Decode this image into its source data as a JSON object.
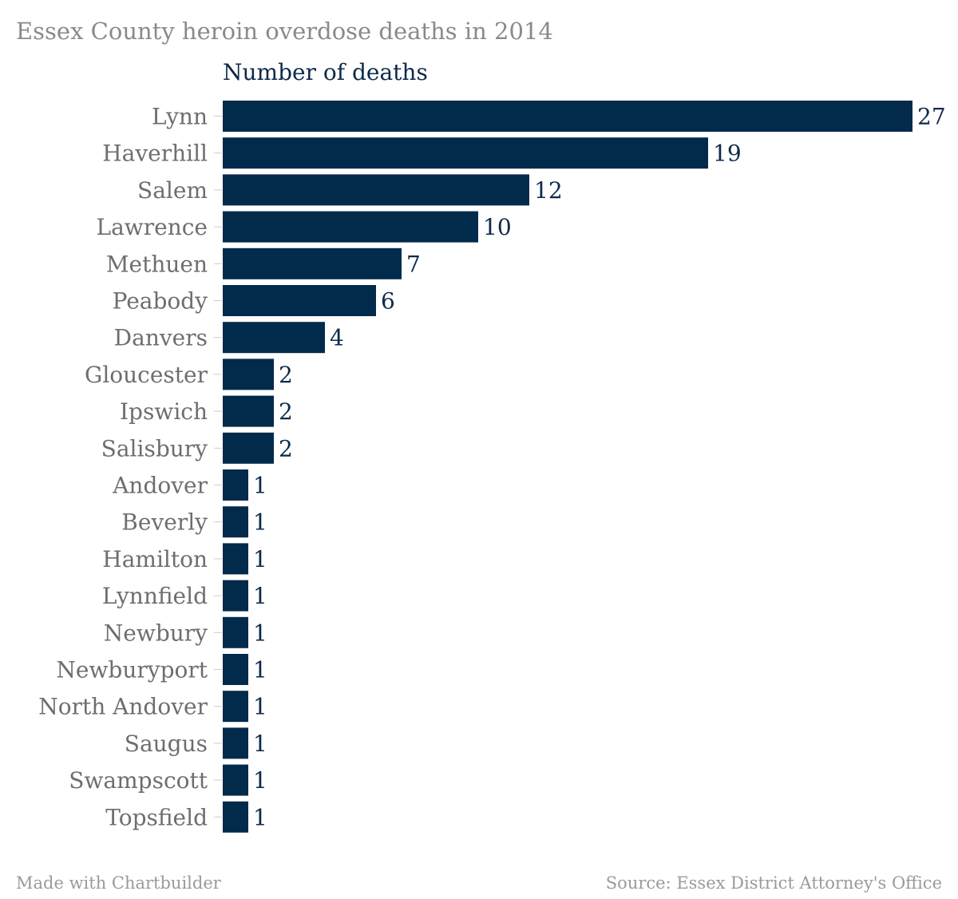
{
  "chart_data": {
    "type": "bar",
    "orientation": "horizontal",
    "title": "Essex County heroin overdose deaths in 2014",
    "subtitle": "Number of deaths",
    "categories": [
      "Lynn",
      "Haverhill",
      "Salem",
      "Lawrence",
      "Methuen",
      "Peabody",
      "Danvers",
      "Gloucester",
      "Ipswich",
      "Salisbury",
      "Andover",
      "Beverly",
      "Hamilton",
      "Lynnfield",
      "Newbury",
      "Newburyport",
      "North Andover",
      "Saugus",
      "Swampscott",
      "Topsfield"
    ],
    "values": [
      27,
      19,
      12,
      10,
      7,
      6,
      4,
      2,
      2,
      2,
      1,
      1,
      1,
      1,
      1,
      1,
      1,
      1,
      1,
      1
    ],
    "xlim": [
      0,
      27
    ],
    "grid": false,
    "bar_color": "#022a4b"
  },
  "footer": {
    "credit": "Made with Chartbuilder",
    "source": "Source: Essex District Attorney's Office"
  },
  "colors": {
    "bar": "#022a4b",
    "category_text": "#6e6e6e",
    "value_text": "#0d2a4a",
    "title_text": "#8a8a8a"
  }
}
